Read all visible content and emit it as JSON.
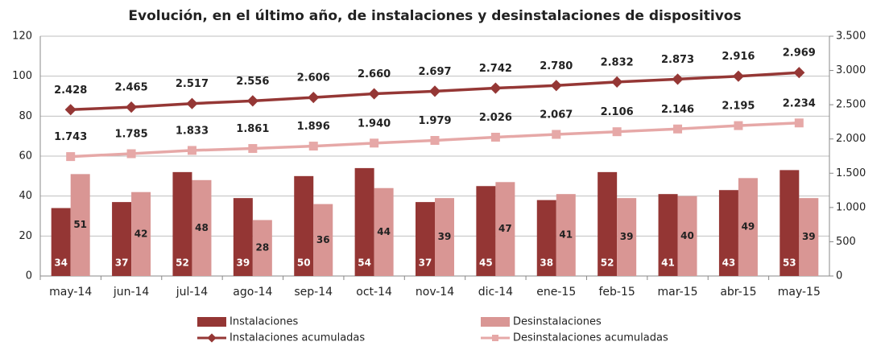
{
  "chart_data": {
    "type": "combo",
    "title": "Evolución, en el último año, de instalaciones y desinstalaciones de dispositivos",
    "categories": [
      "may-14",
      "jun-14",
      "jul-14",
      "ago-14",
      "sep-14",
      "oct-14",
      "nov-14",
      "dic-14",
      "ene-15",
      "feb-15",
      "mar-15",
      "abr-15",
      "may-15"
    ],
    "ylim": [
      0,
      120
    ],
    "yticks": [
      0,
      20,
      40,
      60,
      80,
      100,
      120
    ],
    "y2lim": [
      0,
      3500
    ],
    "y2ticks": [
      0,
      500,
      {
        "value": 1000,
        "label": "1.000"
      },
      {
        "value": 1500,
        "label": "1.500"
      },
      {
        "value": 2000,
        "label": "2.000"
      },
      {
        "value": 2500,
        "label": "2.500"
      },
      {
        "value": 3000,
        "label": "3.000"
      },
      {
        "value": 3500,
        "label": "3.500"
      }
    ],
    "grid": true,
    "series": [
      {
        "name": "Instalaciones",
        "type": "bar",
        "color": "#943634",
        "values": [
          34,
          37,
          52,
          39,
          50,
          54,
          37,
          45,
          38,
          52,
          41,
          43,
          53
        ]
      },
      {
        "name": "Desinstalaciones",
        "type": "bar",
        "color": "#d99694",
        "values": [
          51,
          42,
          48,
          28,
          36,
          44,
          39,
          47,
          41,
          39,
          40,
          49,
          39
        ]
      },
      {
        "name": "Instalaciones acumuladas",
        "type": "line",
        "axis": "y2",
        "color": "#953735",
        "values": [
          2428,
          2465,
          2517,
          2556,
          2606,
          2660,
          2697,
          2742,
          2780,
          2832,
          2873,
          2916,
          2969
        ],
        "value_labels": [
          "2.428",
          "2.465",
          "2.517",
          "2.556",
          "2.606",
          "2.660",
          "2.697",
          "2.742",
          "2.780",
          "2.832",
          "2.873",
          "2.916",
          "2.969"
        ]
      },
      {
        "name": "Desinstalaciones acumuladas",
        "type": "line",
        "axis": "y2",
        "color": "#e6a8a7",
        "values": [
          1743,
          1785,
          1833,
          1861,
          1896,
          1940,
          1979,
          2026,
          2067,
          2106,
          2146,
          2195,
          2234
        ],
        "value_labels": [
          "1.743",
          "1.785",
          "1.833",
          "1.861",
          "1.896",
          "1.940",
          "1.979",
          "2.026",
          "2.067",
          "2.106",
          "2.146",
          "2.195",
          "2.234"
        ]
      }
    ]
  }
}
